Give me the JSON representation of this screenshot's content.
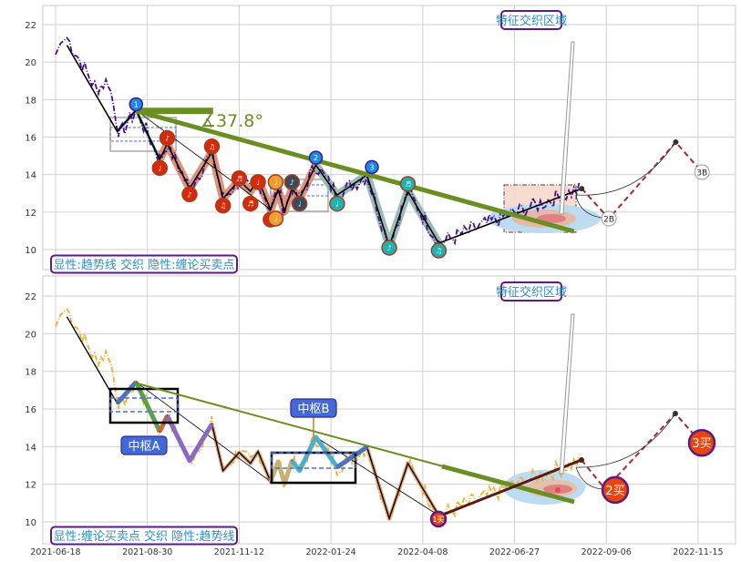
{
  "chart_data": [
    {
      "type": "line",
      "panel": "top",
      "ylim": [
        9,
        23
      ],
      "y_ticks": [
        "10",
        "12",
        "14",
        "16",
        "18",
        "20",
        "22"
      ],
      "grid": true,
      "annotations": {
        "region_label": "特征交织区域",
        "legend_label": "显性:趋势线 交织 隐性:缠论买卖点",
        "angle_label": "∡37.8°"
      },
      "zigzag": [
        [
          "2021-06-27",
          20.9
        ],
        [
          "2021-08-06",
          16.3
        ],
        [
          "2021-08-21",
          17.43
        ],
        [
          "2021-09-09",
          14.81
        ],
        [
          "2021-09-15",
          15.63
        ],
        [
          "2021-10-03",
          13.25
        ],
        [
          "2021-10-21",
          15.19
        ],
        [
          "2021-10-30",
          12.72
        ],
        [
          "2021-11-12",
          13.69
        ],
        [
          "2021-11-21",
          13.11
        ],
        [
          "2021-11-27",
          13.74
        ],
        [
          "2021-12-07",
          12.14
        ],
        [
          "2021-12-13",
          13.2
        ],
        [
          "2021-12-18",
          12.04
        ],
        [
          "2021-12-24",
          13.25
        ],
        [
          "2021-12-30",
          12.72
        ],
        [
          "2022-01-12",
          14.51
        ],
        [
          "2022-01-29",
          12.91
        ],
        [
          "2022-02-22",
          13.98
        ],
        [
          "2022-03-12",
          10.19
        ],
        [
          "2022-03-27",
          13.11
        ],
        [
          "2022-04-22",
          10.34
        ],
        [
          "2022-08-18",
          13.25
        ]
      ],
      "forecast": [
        [
          "2022-08-18",
          13.25
        ],
        [
          "2022-09-08",
          11.65
        ],
        [
          "2022-10-29",
          15.73
        ],
        [
          "2022-11-18",
          14.13
        ]
      ],
      "forecast_labels": [
        {
          "date": "2022-09-08",
          "price": 11.65,
          "text": "2B"
        },
        {
          "date": "2022-11-18",
          "price": 14.13,
          "text": "3B"
        }
      ],
      "trendline": [
        [
          "2021-08-21",
          17.4
        ],
        [
          "2022-08-12",
          10.97
        ]
      ],
      "trend_flat": [
        [
          "2021-08-21",
          17.4
        ],
        [
          "2021-10-22",
          17.4
        ]
      ],
      "markers": [
        {
          "date": "2021-08-21",
          "price": 17.75,
          "color": "#1e88e5",
          "text": "1"
        },
        {
          "date": "2021-09-09",
          "price": 14.35,
          "color": "#d62a0a",
          "text": "♩"
        },
        {
          "date": "2021-09-15",
          "price": 15.95,
          "color": "#d62a0a",
          "text": "♪"
        },
        {
          "date": "2021-10-03",
          "price": 12.95,
          "color": "#d62a0a",
          "text": "♪"
        },
        {
          "date": "2021-10-21",
          "price": 15.5,
          "color": "#d62a0a",
          "text": "♫"
        },
        {
          "date": "2021-10-30",
          "price": 12.35,
          "color": "#d62a0a",
          "text": "♫"
        },
        {
          "date": "2021-11-12",
          "price": 13.8,
          "color": "#d62a0a",
          "text": "♬"
        },
        {
          "date": "2021-11-21",
          "price": 12.45,
          "color": "#d62a0a",
          "text": "♬"
        },
        {
          "date": "2021-11-27",
          "price": 13.6,
          "color": "#d62a0a",
          "text": "♩"
        },
        {
          "date": "2021-12-07",
          "price": 11.6,
          "color": "#d62a0a",
          "text": "♩"
        },
        {
          "date": "2021-12-11",
          "price": 13.6,
          "color": "#f39c33",
          "text": "♩"
        },
        {
          "date": "2021-12-11",
          "price": 11.65,
          "color": "#f39c33",
          "text": "♩"
        },
        {
          "date": "2021-12-24",
          "price": 13.6,
          "color": "#3c4a5c",
          "text": "♪"
        },
        {
          "date": "2021-12-30",
          "price": 12.45,
          "color": "#3c4a5c",
          "text": "♩"
        },
        {
          "date": "2022-01-12",
          "price": 14.9,
          "color": "#1e88e5",
          "text": "2"
        },
        {
          "date": "2022-01-29",
          "price": 12.45,
          "color": "#20b2b2",
          "text": "♩"
        },
        {
          "date": "2022-02-26",
          "price": 14.4,
          "color": "#1e88e5",
          "text": "3"
        },
        {
          "date": "2022-03-12",
          "price": 10.1,
          "color": "#20b2b2",
          "text": "♪"
        },
        {
          "date": "2022-03-27",
          "price": 13.5,
          "color": "#20b2b2",
          "text": "♬"
        },
        {
          "date": "2022-04-22",
          "price": 9.95,
          "color": "#20b2b2",
          "text": "♫"
        }
      ]
    },
    {
      "type": "line",
      "panel": "bottom",
      "ylim": [
        9,
        23
      ],
      "y_ticks": [
        "10",
        "12",
        "14",
        "16",
        "18",
        "20",
        "22"
      ],
      "x_ticks": [
        "2021-06-18",
        "2021-08-30",
        "2021-11-12",
        "2022-01-24",
        "2022-04-08",
        "2022-06-27",
        "2022-09-06",
        "2022-11-15"
      ],
      "grid": true,
      "annotations": {
        "region_label": "特征交织区域",
        "legend_label": "显性:缠论买卖点 交织 隐性:趋势线",
        "pivot_a": "中枢A",
        "pivot_b": "中枢B"
      },
      "buy_points": [
        {
          "date": "2022-04-22",
          "price": 10.15,
          "text": "1买"
        },
        {
          "date": "2022-09-11",
          "price": 11.7,
          "text": "2买"
        },
        {
          "date": "2022-11-18",
          "price": 14.2,
          "text": "3买"
        }
      ]
    }
  ]
}
